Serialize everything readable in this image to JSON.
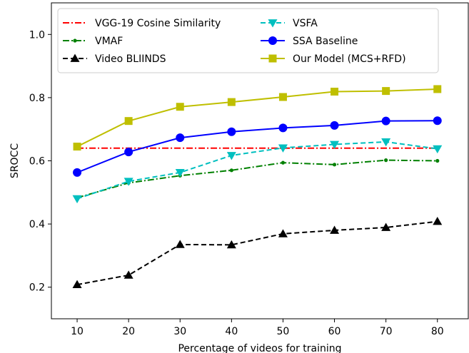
{
  "chart_data": {
    "type": "line",
    "title": "",
    "xlabel": "Percentage of videos for training",
    "ylabel": "SROCC",
    "x": [
      10,
      20,
      30,
      40,
      50,
      60,
      70,
      80
    ],
    "xlim": [
      5,
      86
    ],
    "ylim": [
      0.1,
      1.1
    ],
    "xticks": [
      "10",
      "20",
      "30",
      "40",
      "50",
      "60",
      "70",
      "80"
    ],
    "yticks": [
      "0.2",
      "0.4",
      "0.6",
      "0.8",
      "1.0"
    ],
    "grid": false,
    "legend_position": "top-left",
    "series": [
      {
        "name": "VGG-19 Cosine Similarity",
        "color": "#ff0000",
        "dash": "dashdot",
        "marker": "none",
        "values": [
          0.64,
          0.64,
          0.64,
          0.64,
          0.64,
          0.64,
          0.64,
          0.64
        ]
      },
      {
        "name": "VMAF",
        "color": "#008000",
        "dash": "dashdot",
        "marker": "dot",
        "values": [
          0.483,
          0.53,
          0.553,
          0.57,
          0.594,
          0.588,
          0.602,
          0.6
        ]
      },
      {
        "name": "Video BLIINDS",
        "color": "#000000",
        "dash": "dashed",
        "marker": "triangle-up",
        "values": [
          0.208,
          0.238,
          0.335,
          0.334,
          0.369,
          0.38,
          0.389,
          0.408
        ]
      },
      {
        "name": "VSFA",
        "color": "#00bfbf",
        "dash": "dashed",
        "marker": "triangle-down",
        "values": [
          0.48,
          0.535,
          0.563,
          0.617,
          0.641,
          0.652,
          0.66,
          0.638
        ]
      },
      {
        "name": "SSA Baseline",
        "color": "#0000ff",
        "dash": "solid",
        "marker": "circle",
        "values": [
          0.563,
          0.628,
          0.673,
          0.692,
          0.704,
          0.712,
          0.726,
          0.727
        ]
      },
      {
        "name": "Our Model (MCS+RFD)",
        "color": "#bfbf00",
        "dash": "solid",
        "marker": "square",
        "values": [
          0.645,
          0.726,
          0.771,
          0.786,
          0.802,
          0.819,
          0.821,
          0.827
        ]
      }
    ]
  }
}
